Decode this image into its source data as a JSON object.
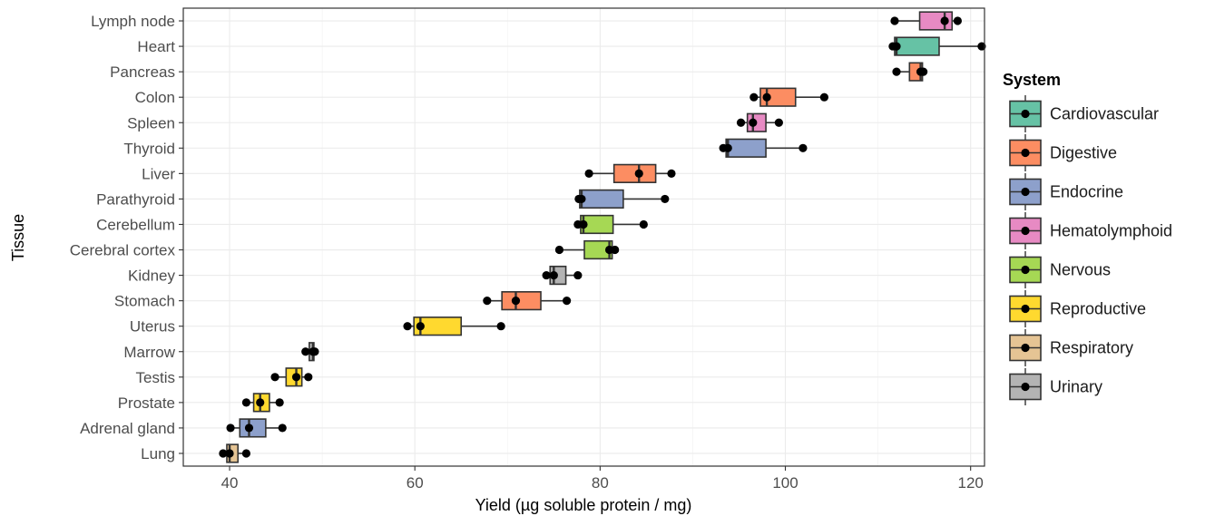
{
  "chart_data": {
    "type": "boxplot",
    "xlabel": "Yield (µg soluble protein / mg)",
    "ylabel": "Tissue",
    "xlim": [
      35,
      121.5
    ],
    "xticks": [
      40,
      60,
      80,
      100,
      120
    ],
    "grid": true,
    "legend": {
      "title": "System",
      "placement": "right",
      "entries": [
        {
          "name": "Cardiovascular",
          "color": "#66c2a5"
        },
        {
          "name": "Digestive",
          "color": "#fc8d62"
        },
        {
          "name": "Endocrine",
          "color": "#8da0cb"
        },
        {
          "name": "Hematolymphoid",
          "color": "#e78ac3"
        },
        {
          "name": "Nervous",
          "color": "#a6d854"
        },
        {
          "name": "Reproductive",
          "color": "#ffd92f"
        },
        {
          "name": "Respiratory",
          "color": "#e5c494"
        },
        {
          "name": "Urinary",
          "color": "#b3b3b3"
        }
      ]
    },
    "tissues": [
      {
        "name": "Lymph node",
        "system": "Hematolymphoid",
        "min": 111.8,
        "q1": 114.5,
        "median": 117.2,
        "q3": 118.0,
        "max": 118.6,
        "points": [
          111.8,
          117.2,
          118.6
        ]
      },
      {
        "name": "Heart",
        "system": "Cardiovascular",
        "min": 111.6,
        "q1": 111.8,
        "median": 112.0,
        "q3": 116.6,
        "max": 121.2,
        "points": [
          111.6,
          112.0,
          121.2
        ]
      },
      {
        "name": "Pancreas",
        "system": "Digestive",
        "min": 112.0,
        "q1": 113.4,
        "median": 114.6,
        "q3": 114.8,
        "max": 114.9,
        "points": [
          112.0,
          114.6,
          114.9
        ]
      },
      {
        "name": "Colon",
        "system": "Digestive",
        "min": 96.6,
        "q1": 97.3,
        "median": 98.0,
        "q3": 101.1,
        "max": 104.2,
        "points": [
          96.6,
          98.0,
          104.2
        ]
      },
      {
        "name": "Spleen",
        "system": "Hematolymphoid",
        "min": 95.2,
        "q1": 95.9,
        "median": 96.5,
        "q3": 97.9,
        "max": 99.3,
        "points": [
          95.2,
          96.5,
          99.3
        ]
      },
      {
        "name": "Thyroid",
        "system": "Endocrine",
        "min": 93.3,
        "q1": 93.6,
        "median": 93.8,
        "q3": 97.9,
        "max": 101.9,
        "points": [
          93.3,
          93.8,
          101.9
        ]
      },
      {
        "name": "Liver",
        "system": "Digestive",
        "min": 78.8,
        "q1": 81.5,
        "median": 84.2,
        "q3": 86.0,
        "max": 87.7,
        "points": [
          78.8,
          84.2,
          87.7
        ]
      },
      {
        "name": "Parathyroid",
        "system": "Endocrine",
        "min": 77.7,
        "q1": 77.8,
        "median": 78.0,
        "q3": 82.5,
        "max": 87.0,
        "points": [
          77.7,
          78.0,
          87.0
        ]
      },
      {
        "name": "Cerebellum",
        "system": "Nervous",
        "min": 77.6,
        "q1": 77.9,
        "median": 78.2,
        "q3": 81.4,
        "max": 84.7,
        "points": [
          77.6,
          78.2,
          84.7
        ]
      },
      {
        "name": "Cerebral cortex",
        "system": "Nervous",
        "min": 75.6,
        "q1": 78.3,
        "median": 81.0,
        "q3": 81.3,
        "max": 81.6,
        "points": [
          75.6,
          81.0,
          81.6
        ]
      },
      {
        "name": "Kidney",
        "system": "Urinary",
        "min": 74.2,
        "q1": 74.6,
        "median": 75.0,
        "q3": 76.3,
        "max": 77.6,
        "points": [
          74.2,
          75.0,
          77.6
        ]
      },
      {
        "name": "Stomach",
        "system": "Digestive",
        "min": 67.8,
        "q1": 69.4,
        "median": 70.9,
        "q3": 73.6,
        "max": 76.4,
        "points": [
          67.8,
          70.9,
          76.4
        ]
      },
      {
        "name": "Uterus",
        "system": "Reproductive",
        "min": 59.2,
        "q1": 59.9,
        "median": 60.6,
        "q3": 65.0,
        "max": 69.3,
        "points": [
          59.2,
          60.6,
          69.3
        ]
      },
      {
        "name": "Marrow",
        "system": "Urinary",
        "min": 48.2,
        "q1": 48.6,
        "median": 49.0,
        "q3": 49.1,
        "max": 49.2,
        "points": [
          48.2,
          49.0,
          49.2
        ]
      },
      {
        "name": "Testis",
        "system": "Reproductive",
        "min": 44.9,
        "q1": 46.1,
        "median": 47.2,
        "q3": 47.8,
        "max": 48.5,
        "points": [
          44.9,
          47.2,
          48.5
        ]
      },
      {
        "name": "Prostate",
        "system": "Reproductive",
        "min": 41.8,
        "q1": 42.6,
        "median": 43.3,
        "q3": 44.3,
        "max": 45.4,
        "points": [
          41.8,
          43.3,
          45.4
        ]
      },
      {
        "name": "Adrenal gland",
        "system": "Endocrine",
        "min": 40.1,
        "q1": 41.1,
        "median": 42.1,
        "q3": 43.9,
        "max": 45.7,
        "points": [
          40.1,
          42.1,
          45.7
        ]
      },
      {
        "name": "Lung",
        "system": "Respiratory",
        "min": 39.3,
        "q1": 39.7,
        "median": 40.0,
        "q3": 40.9,
        "max": 41.8,
        "points": [
          39.3,
          40.0,
          41.8
        ]
      }
    ]
  }
}
